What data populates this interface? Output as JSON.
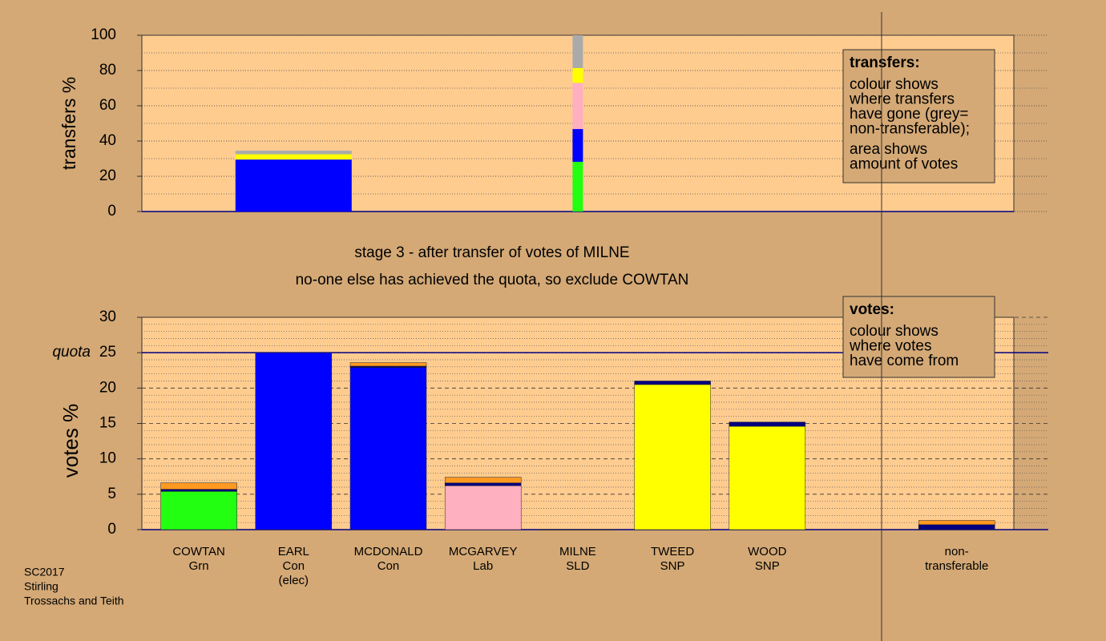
{
  "chart_data": [
    {
      "type": "bar",
      "stacked": true,
      "ylabel": "transfers %",
      "ylim": [
        0,
        100
      ],
      "yticks": [
        0,
        20,
        40,
        60,
        80,
        100
      ],
      "grid": true,
      "categories": [
        null,
        "EARL",
        null,
        null,
        "MILNE",
        null,
        null,
        null,
        null
      ],
      "series": [
        {
          "color": "#22ff11",
          "values": [
            null,
            null,
            null,
            null,
            28.2,
            null,
            null,
            null,
            null
          ]
        },
        {
          "color": "#0000ff",
          "values": [
            null,
            29.5,
            null,
            null,
            18.6,
            null,
            null,
            null,
            null
          ]
        },
        {
          "color": "#ffb0c0",
          "values": [
            null,
            null,
            null,
            null,
            26.2,
            null,
            null,
            null,
            null
          ]
        },
        {
          "color": "#ffff00",
          "values": [
            null,
            3,
            null,
            null,
            8.4,
            null,
            null,
            null,
            null
          ]
        },
        {
          "color": "#aaaaaa",
          "values": [
            null,
            2,
            null,
            null,
            18.6,
            null,
            null,
            null,
            null
          ]
        }
      ],
      "note": {
        "heading": "transfers:",
        "lines": [
          "colour shows",
          "where transfers",
          "have gone (grey=",
          "non-transferable);",
          "area shows",
          "amount of votes"
        ]
      }
    },
    {
      "type": "bar",
      "stacked": true,
      "title": "stage 3 - after transfer of votes of MILNE",
      "subtitle": "no-one else has achieved the quota, so exclude COWTAN",
      "ylabel": "votes %",
      "ylim": [
        0,
        30
      ],
      "yticks": [
        0,
        5,
        10,
        15,
        20,
        25,
        30
      ],
      "grid": true,
      "quota": {
        "value": 25,
        "label": "quota"
      },
      "categories": [
        [
          "COWTAN",
          "Grn"
        ],
        [
          "EARL",
          "Con",
          "(elec)"
        ],
        [
          "MCDONALD",
          "Con"
        ],
        [
          "MCGARVEY",
          "Lab"
        ],
        [
          "MILNE",
          "SLD"
        ],
        [
          "TWEED",
          "SNP"
        ],
        [
          "WOOD",
          "SNP"
        ],
        null,
        [
          "non-",
          "transferable"
        ]
      ],
      "series": [
        {
          "color": "#22ff11",
          "values": [
            5.4,
            null,
            null,
            null,
            null,
            null,
            null,
            null,
            null
          ]
        },
        {
          "color": "#0000ff",
          "values": [
            null,
            25,
            22.9,
            null,
            0,
            null,
            null,
            null,
            null
          ]
        },
        {
          "color": "#ffb0c0",
          "values": [
            null,
            null,
            null,
            6.2,
            null,
            null,
            null,
            null,
            null
          ]
        },
        {
          "color": "#ffff00",
          "values": [
            null,
            null,
            null,
            null,
            null,
            20.5,
            14.6,
            null,
            null
          ]
        },
        {
          "color": "#000080",
          "values": [
            0.3,
            null,
            0.2,
            0.4,
            null,
            0.5,
            0.6,
            null,
            0.7
          ]
        },
        {
          "color": "#ff9922",
          "values": [
            0.9,
            null,
            0.5,
            0.8,
            null,
            null,
            null,
            null,
            0.6
          ]
        }
      ],
      "note": {
        "heading": "votes:",
        "lines": [
          "colour shows",
          "where votes",
          "have come from"
        ]
      },
      "footer": [
        "SC2017",
        "Stirling",
        "Trossachs and Teith"
      ]
    }
  ]
}
